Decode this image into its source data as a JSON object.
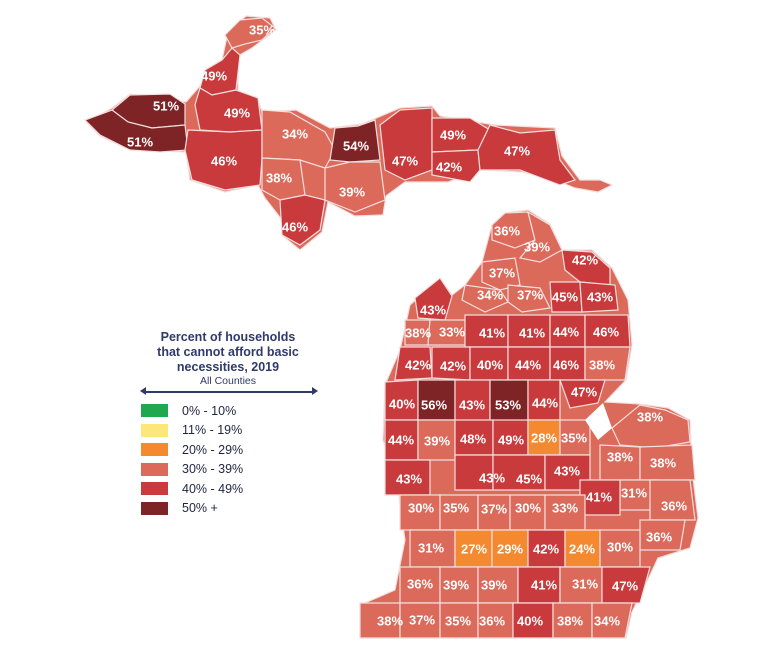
{
  "legend": {
    "title_lines": [
      "Percent of households",
      "that cannot afford basic",
      "necessities, 2019"
    ],
    "subtitle": "All Counties",
    "items": [
      {
        "label": "0% - 10%",
        "color": "#1fa84f"
      },
      {
        "label": "11% - 19%",
        "color": "#fde67a"
      },
      {
        "label": "20% - 29%",
        "color": "#f4892f"
      },
      {
        "label": "30% - 39%",
        "color": "#dc6a5a"
      },
      {
        "label": "40% - 49%",
        "color": "#c93a3d"
      },
      {
        "label": "50% +",
        "color": "#7e2426"
      }
    ]
  },
  "counties": [
    {
      "id": "u01",
      "value": "35%",
      "cat": 3
    },
    {
      "id": "u02",
      "value": "49%",
      "cat": 4
    },
    {
      "id": "u03",
      "value": "51%",
      "cat": 5
    },
    {
      "id": "u04",
      "value": "51%",
      "cat": 5
    },
    {
      "id": "u05",
      "value": "49%",
      "cat": 4
    },
    {
      "id": "u06",
      "value": "46%",
      "cat": 4
    },
    {
      "id": "u07",
      "value": "34%",
      "cat": 3
    },
    {
      "id": "u08",
      "value": "38%",
      "cat": 3
    },
    {
      "id": "u09",
      "value": "46%",
      "cat": 4
    },
    {
      "id": "u10",
      "value": "54%",
      "cat": 5
    },
    {
      "id": "u11",
      "value": "39%",
      "cat": 3
    },
    {
      "id": "u12",
      "value": "47%",
      "cat": 4
    },
    {
      "id": "u13",
      "value": "49%",
      "cat": 4
    },
    {
      "id": "u14",
      "value": "42%",
      "cat": 4
    },
    {
      "id": "u15",
      "value": "47%",
      "cat": 4
    },
    {
      "id": "l01",
      "value": "36%",
      "cat": 3
    },
    {
      "id": "l02",
      "value": "39%",
      "cat": 3
    },
    {
      "id": "l03",
      "value": "42%",
      "cat": 4
    },
    {
      "id": "l04",
      "value": "37%",
      "cat": 3
    },
    {
      "id": "l05",
      "value": "34%",
      "cat": 3
    },
    {
      "id": "l06",
      "value": "37%",
      "cat": 3
    },
    {
      "id": "l07",
      "value": "45%",
      "cat": 4
    },
    {
      "id": "l08",
      "value": "43%",
      "cat": 4
    },
    {
      "id": "l09",
      "value": "43%",
      "cat": 4
    },
    {
      "id": "l10",
      "value": "38%",
      "cat": 3
    },
    {
      "id": "l11",
      "value": "33%",
      "cat": 3
    },
    {
      "id": "l12",
      "value": "41%",
      "cat": 4
    },
    {
      "id": "l13",
      "value": "41%",
      "cat": 4
    },
    {
      "id": "l14",
      "value": "44%",
      "cat": 4
    },
    {
      "id": "l15",
      "value": "46%",
      "cat": 4
    },
    {
      "id": "l16",
      "value": "42%",
      "cat": 4
    },
    {
      "id": "l17",
      "value": "42%",
      "cat": 4
    },
    {
      "id": "l18",
      "value": "40%",
      "cat": 4
    },
    {
      "id": "l19",
      "value": "44%",
      "cat": 4
    },
    {
      "id": "l20",
      "value": "46%",
      "cat": 4
    },
    {
      "id": "l21",
      "value": "38%",
      "cat": 3
    },
    {
      "id": "l22",
      "value": "47%",
      "cat": 4
    },
    {
      "id": "l23",
      "value": "40%",
      "cat": 4
    },
    {
      "id": "l24",
      "value": "56%",
      "cat": 5
    },
    {
      "id": "l25",
      "value": "43%",
      "cat": 4
    },
    {
      "id": "l26",
      "value": "53%",
      "cat": 5
    },
    {
      "id": "l27",
      "value": "44%",
      "cat": 4
    },
    {
      "id": "l28",
      "value": "38%",
      "cat": 3
    },
    {
      "id": "l29",
      "value": "44%",
      "cat": 4
    },
    {
      "id": "l30",
      "value": "39%",
      "cat": 3
    },
    {
      "id": "l31",
      "value": "48%",
      "cat": 4
    },
    {
      "id": "l32",
      "value": "49%",
      "cat": 4
    },
    {
      "id": "l33",
      "value": "28%",
      "cat": 2
    },
    {
      "id": "l34",
      "value": "35%",
      "cat": 3
    },
    {
      "id": "l35",
      "value": "38%",
      "cat": 3
    },
    {
      "id": "l36",
      "value": "38%",
      "cat": 3
    },
    {
      "id": "l37",
      "value": "43%",
      "cat": 4
    },
    {
      "id": "l38",
      "value": "43%",
      "cat": 4
    },
    {
      "id": "l39",
      "value": "45%",
      "cat": 4
    },
    {
      "id": "l40",
      "value": "43%",
      "cat": 4
    },
    {
      "id": "l41",
      "value": "31%",
      "cat": 3
    },
    {
      "id": "l42",
      "value": "41%",
      "cat": 4
    },
    {
      "id": "l43",
      "value": "36%",
      "cat": 3
    },
    {
      "id": "l44",
      "value": "30%",
      "cat": 3
    },
    {
      "id": "l45",
      "value": "35%",
      "cat": 3
    },
    {
      "id": "l46",
      "value": "37%",
      "cat": 3
    },
    {
      "id": "l47",
      "value": "30%",
      "cat": 3
    },
    {
      "id": "l48",
      "value": "33%",
      "cat": 3
    },
    {
      "id": "l49",
      "value": "36%",
      "cat": 3
    },
    {
      "id": "l50",
      "value": "31%",
      "cat": 3
    },
    {
      "id": "l51",
      "value": "27%",
      "cat": 2
    },
    {
      "id": "l52",
      "value": "29%",
      "cat": 2
    },
    {
      "id": "l53",
      "value": "42%",
      "cat": 4
    },
    {
      "id": "l54",
      "value": "24%",
      "cat": 2
    },
    {
      "id": "l55",
      "value": "30%",
      "cat": 3
    },
    {
      "id": "l56",
      "value": "36%",
      "cat": 3
    },
    {
      "id": "l57",
      "value": "39%",
      "cat": 3
    },
    {
      "id": "l58",
      "value": "39%",
      "cat": 3
    },
    {
      "id": "l59",
      "value": "41%",
      "cat": 4
    },
    {
      "id": "l60",
      "value": "31%",
      "cat": 3
    },
    {
      "id": "l61",
      "value": "47%",
      "cat": 4
    },
    {
      "id": "l62",
      "value": "38%",
      "cat": 3
    },
    {
      "id": "l63",
      "value": "37%",
      "cat": 3
    },
    {
      "id": "l64",
      "value": "35%",
      "cat": 3
    },
    {
      "id": "l65",
      "value": "36%",
      "cat": 3
    },
    {
      "id": "l66",
      "value": "40%",
      "cat": 4
    },
    {
      "id": "l67",
      "value": "38%",
      "cat": 3
    },
    {
      "id": "l68",
      "value": "34%",
      "cat": 3
    }
  ]
}
